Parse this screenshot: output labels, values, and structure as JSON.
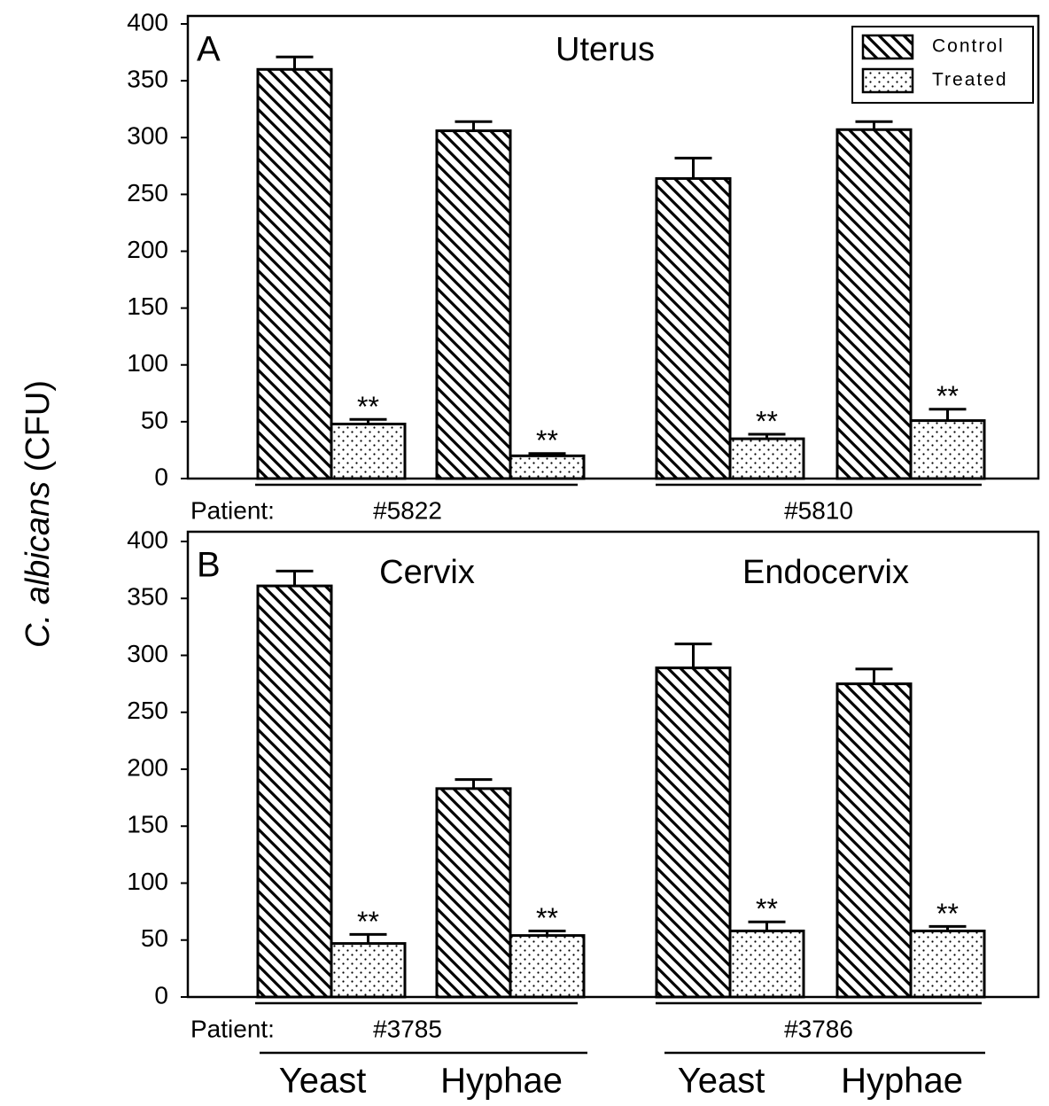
{
  "chart_data": [
    {
      "type": "bar",
      "panel": "A",
      "title": "Uterus",
      "group_prefix": "Patient:",
      "groups": [
        "#5822",
        "#5810"
      ],
      "series": [
        {
          "name": "Control",
          "color": "#000000",
          "pattern": "hatch",
          "values": [
            360,
            306,
            264,
            307
          ],
          "errors": [
            11,
            8,
            18,
            7
          ]
        },
        {
          "name": "Treated",
          "color": "#000000",
          "pattern": "dots",
          "values": [
            48,
            20,
            35,
            51
          ],
          "errors": [
            4,
            2,
            4,
            10
          ],
          "marks": [
            "**",
            "**",
            "**",
            "**"
          ]
        }
      ],
      "ylim": [
        0,
        400
      ],
      "yticks": [
        0,
        50,
        100,
        150,
        200,
        250,
        300,
        350,
        400
      ],
      "legend": "upper right"
    },
    {
      "type": "bar",
      "panel": "B",
      "group_titles": [
        "Cervix",
        "Endocervix"
      ],
      "group_prefix": "Patient:",
      "groups": [
        "#3785",
        "#3786"
      ],
      "categories": [
        "Yeast",
        "Hyphae",
        "Yeast",
        "Hyphae"
      ],
      "series": [
        {
          "name": "Control",
          "color": "#000000",
          "pattern": "hatch",
          "values": [
            361,
            183,
            289,
            275
          ],
          "errors": [
            13,
            8,
            21,
            13
          ]
        },
        {
          "name": "Treated",
          "color": "#000000",
          "pattern": "dots",
          "values": [
            47,
            54,
            58,
            58
          ],
          "errors": [
            8,
            4,
            8,
            4
          ],
          "marks": [
            "**",
            "**",
            "**",
            "**"
          ]
        }
      ],
      "ylim": [
        0,
        400
      ],
      "yticks": [
        0,
        50,
        100,
        150,
        200,
        250,
        300,
        350,
        400
      ]
    }
  ],
  "y_label_species": "C. albicans",
  "y_label_unit": "(CFU)"
}
